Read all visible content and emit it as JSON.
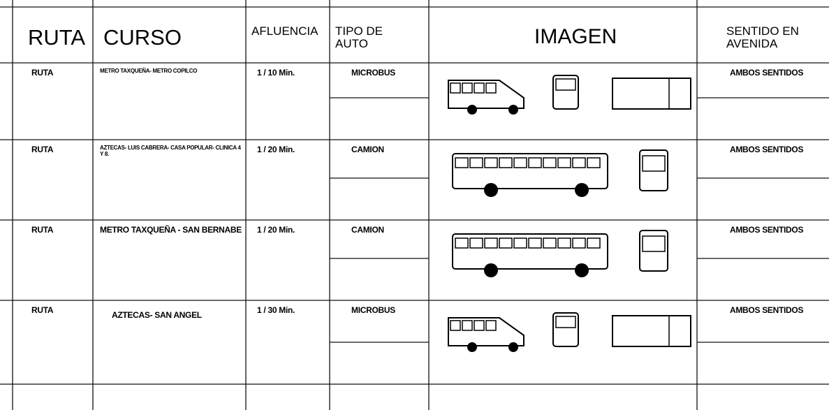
{
  "header": {
    "ruta": "RUTA",
    "curso": "CURSO",
    "afluencia": "AFLUENCIA",
    "tipo": "TIPO DE AUTO",
    "imagen": "IMAGEN",
    "sentido": "SENTIDO EN AVENIDA"
  },
  "rows": [
    {
      "ruta": "RUTA",
      "curso": "METRO TAXQUEÑA- METRO COPILCO",
      "afluencia": "1 / 10 Min.",
      "tipo": "MICROBUS",
      "sentido": "AMBOS SENTIDOS"
    },
    {
      "ruta": "RUTA",
      "curso": "AZTECAS- LUIS CABRERA- CASA POPULAR- CLINICA 4 Y 8.",
      "afluencia": "1 / 20 Min.",
      "tipo": "CAMION",
      "sentido": "AMBOS SENTIDOS"
    },
    {
      "ruta": "RUTA",
      "curso": "METRO TAXQUEÑA - SAN BERNABE",
      "afluencia": "1 / 20 Min.",
      "tipo": "CAMION",
      "sentido": "AMBOS SENTIDOS"
    },
    {
      "ruta": "RUTA",
      "curso": "AZTECAS- SAN ANGEL",
      "afluencia": "1 / 30 Min.",
      "tipo": "MICROBUS",
      "sentido": "AMBOS SENTIDOS"
    }
  ]
}
